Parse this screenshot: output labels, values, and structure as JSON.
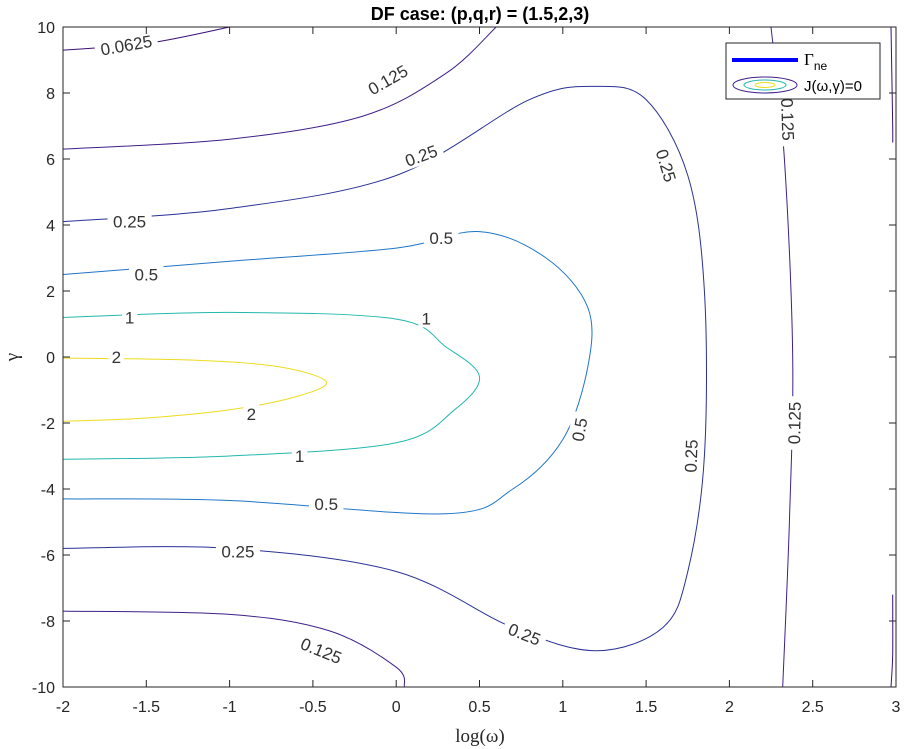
{
  "chart_data": {
    "type": "contour",
    "title": "DF case: (p,q,r) = (1.5,2,3)",
    "xlabel": "log(ω)",
    "ylabel": "γ",
    "xlim": [
      -2,
      3
    ],
    "ylim": [
      -10,
      10
    ],
    "xticks": [
      "-2",
      "-1.5",
      "-1",
      "-0.5",
      "0",
      "0.5",
      "1",
      "1.5",
      "2",
      "2.5",
      "3"
    ],
    "xtick_values": [
      -2,
      -1.5,
      -1,
      -0.5,
      0,
      0.5,
      1,
      1.5,
      2,
      2.5,
      3
    ],
    "yticks": [
      "-10",
      "-8",
      "-6",
      "-4",
      "-2",
      "0",
      "2",
      "4",
      "6",
      "8",
      "10"
    ],
    "ytick_values": [
      -10,
      -8,
      -6,
      -4,
      -2,
      0,
      2,
      4,
      6,
      8,
      10
    ],
    "legend": {
      "placement": "top-right",
      "entries": [
        {
          "sub": "ne",
          "color": "#0000ff"
        },
        {
          "label": "J(ω,γ)=0"
        }
      ]
    },
    "levels": [
      {
        "level": 2,
        "color": "#ecdc1d",
        "points": [
          [
            -2,
            -0.03
          ],
          [
            -1.2,
            -0.1
          ],
          [
            -0.7,
            -0.3
          ],
          [
            -0.42,
            -0.75
          ],
          [
            -0.6,
            -1.2
          ],
          [
            -1.0,
            -1.6
          ],
          [
            -1.5,
            -1.85
          ],
          [
            -2,
            -1.95
          ]
        ],
        "labels": [
          {
            "text": "2",
            "x": -1.68,
            "y": 0.0,
            "angle": 0
          },
          {
            "text": "2",
            "x": -0.87,
            "y": -1.72,
            "angle": 0
          }
        ]
      },
      {
        "level": 1,
        "color": "#23b8ad",
        "points": [
          [
            -2,
            1.2
          ],
          [
            -1.0,
            1.35
          ],
          [
            0,
            1.15
          ],
          [
            0.3,
            0.3
          ],
          [
            0.5,
            -0.6
          ],
          [
            0.35,
            -1.6
          ],
          [
            0,
            -2.6
          ],
          [
            -1.0,
            -3.0
          ],
          [
            -2,
            -3.1
          ]
        ],
        "labels": [
          {
            "text": "1",
            "x": -1.6,
            "y": 1.2,
            "angle": 0
          },
          {
            "text": "1",
            "x": 0.18,
            "y": 1.17,
            "angle": 0
          },
          {
            "text": "1",
            "x": -0.58,
            "y": -3.0,
            "angle": 0
          }
        ]
      },
      {
        "level": 0.5,
        "color": "#1f75c8",
        "points": [
          [
            -2,
            2.5
          ],
          [
            -1.0,
            2.9
          ],
          [
            0,
            3.3
          ],
          [
            0.5,
            3.8
          ],
          [
            0.9,
            3.0
          ],
          [
            1.15,
            1.5
          ],
          [
            1.15,
            -0.3
          ],
          [
            1.0,
            -2.5
          ],
          [
            0.7,
            -4.0
          ],
          [
            0.3,
            -4.75
          ],
          [
            -1.0,
            -4.35
          ],
          [
            -2,
            -4.3
          ]
        ],
        "labels": [
          {
            "text": "0.5",
            "x": -1.5,
            "y": 2.5,
            "angle": 0
          },
          {
            "text": "0.5",
            "x": 0.27,
            "y": 3.6,
            "angle": 0
          },
          {
            "text": "0.5",
            "x": 1.1,
            "y": -2.2,
            "angle": -80
          },
          {
            "text": "0.5",
            "x": -0.42,
            "y": -4.45,
            "angle": 0
          }
        ]
      },
      {
        "level": 0.25,
        "color": "#2a3195",
        "points": [
          [
            -2,
            4.1
          ],
          [
            -1.0,
            4.5
          ],
          [
            0,
            5.5
          ],
          [
            0.8,
            7.8
          ],
          [
            1.2,
            8.2
          ],
          [
            1.5,
            7.8
          ],
          [
            1.75,
            5.5
          ],
          [
            1.85,
            2.0
          ],
          [
            1.85,
            -3.0
          ],
          [
            1.75,
            -6.5
          ],
          [
            1.6,
            -8.2
          ],
          [
            1.2,
            -8.9
          ],
          [
            0.7,
            -8.2
          ],
          [
            0,
            -6.5
          ],
          [
            -1.0,
            -5.8
          ],
          [
            -2,
            -5.8
          ]
        ],
        "labels": [
          {
            "text": "0.25",
            "x": -1.6,
            "y": 4.1,
            "angle": 0
          },
          {
            "text": "0.25",
            "x": 0.15,
            "y": 6.1,
            "angle": -20
          },
          {
            "text": "0.25",
            "x": 1.62,
            "y": 5.8,
            "angle": 73
          },
          {
            "text": "0.25",
            "x": 1.77,
            "y": -3.0,
            "angle": -88
          },
          {
            "text": "0.25",
            "x": 0.77,
            "y": -8.4,
            "angle": 22
          },
          {
            "text": "0.25",
            "x": -0.95,
            "y": -5.9,
            "angle": 0
          }
        ]
      },
      {
        "level": 0.125,
        "color": "#3e1f8b",
        "points": [
          [
            -2,
            6.3
          ],
          [
            -1.0,
            6.6
          ],
          [
            -0.2,
            7.3
          ],
          [
            0.3,
            8.6
          ],
          [
            0.6,
            10.0
          ]
        ],
        "labels": [
          {
            "text": "0.125",
            "x": -0.05,
            "y": 8.4,
            "angle": -30
          }
        ]
      },
      {
        "level": 0.125,
        "color": "#3e1f8b",
        "points": [
          [
            -2,
            -7.7
          ],
          [
            -1.0,
            -7.8
          ],
          [
            -0.4,
            -8.3
          ],
          [
            0,
            -9.4
          ],
          [
            0.05,
            -10.0
          ]
        ],
        "labels": [
          {
            "text": "0.125",
            "x": -0.45,
            "y": -8.9,
            "angle": 22
          }
        ]
      },
      {
        "level": 0.125,
        "color": "#3e1f8b",
        "points": [
          [
            2.25,
            10.0
          ],
          [
            2.33,
            6.0
          ],
          [
            2.38,
            0.0
          ],
          [
            2.36,
            -5.0
          ],
          [
            2.32,
            -10.0
          ]
        ],
        "labels": [
          {
            "text": "0.125",
            "x": 2.35,
            "y": 7.2,
            "angle": 88
          },
          {
            "text": "0.125",
            "x": 2.39,
            "y": -2.0,
            "angle": -89
          }
        ]
      },
      {
        "level": 0.0625,
        "color": "#3a0f77",
        "points": [
          [
            -2,
            9.3
          ],
          [
            -1.5,
            9.5
          ],
          [
            -1.0,
            10.0
          ]
        ],
        "labels": [
          {
            "text": "0.0625",
            "x": -1.62,
            "y": 9.45,
            "angle": -10
          }
        ]
      },
      {
        "level": 0.0625,
        "color": "#3a0f77",
        "points": [
          [
            2.97,
            10.0
          ],
          [
            2.98,
            7.0
          ],
          [
            2.98,
            6.5
          ]
        ],
        "labels": []
      },
      {
        "level": 0.0625,
        "color": "#3a0f77",
        "points": [
          [
            2.98,
            -7.2
          ],
          [
            2.98,
            -9.0
          ],
          [
            2.97,
            -10.0
          ]
        ],
        "labels": []
      }
    ]
  }
}
